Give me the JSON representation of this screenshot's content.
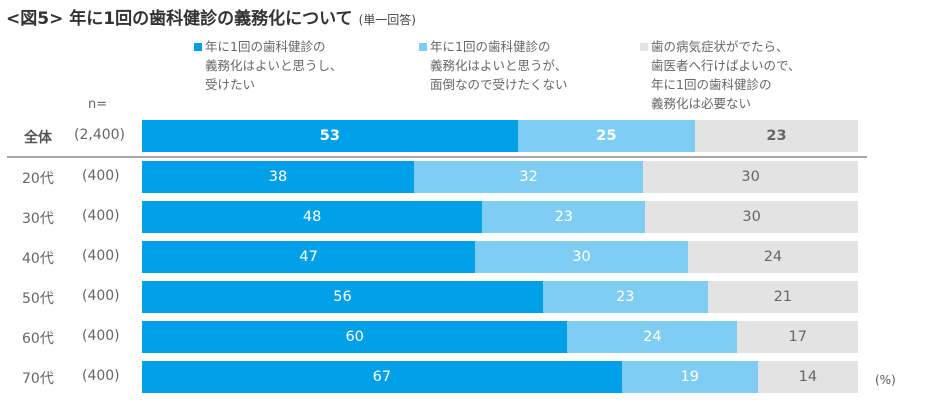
{
  "title": "<図5> 年に1回の歯科健診の義務化について",
  "subtitle": "(単一回答)",
  "n_label": "n=",
  "unit_label": "(%)",
  "colors": {
    "series1": "#00A0E9",
    "series2": "#80CDF3",
    "series3": "#E3E3E3"
  },
  "chart_data": {
    "type": "bar",
    "orientation": "horizontal",
    "stacked": true,
    "normalized": true,
    "title": "<図5> 年に1回の歯科健診の義務化について (単一回答)",
    "xlabel": "",
    "ylabel": "",
    "unit": "(%)",
    "legend_position": "top",
    "grid": false,
    "categories": [
      "全体",
      "20代",
      "30代",
      "40代",
      "50代",
      "60代",
      "70代"
    ],
    "sample_sizes": [
      "(2,400)",
      "(400)",
      "(400)",
      "(400)",
      "(400)",
      "(400)",
      "(400)"
    ],
    "series": [
      {
        "name": "年に1回の歯科健診の\n義務化はよいと思うし、\n受けたい",
        "values": [
          53,
          38,
          48,
          47,
          56,
          60,
          67
        ]
      },
      {
        "name": "年に1回の歯科健診の\n義務化はよいと思うが、\n面倒なので受けたくない",
        "values": [
          25,
          32,
          23,
          30,
          23,
          24,
          19
        ]
      },
      {
        "name": "歯の病気症状がでたら、\n歯医者へ行けばよいので、\n年に1回の歯科健診の\n義務化は必要ない",
        "values": [
          23,
          30,
          30,
          24,
          21,
          17,
          14
        ]
      }
    ]
  }
}
